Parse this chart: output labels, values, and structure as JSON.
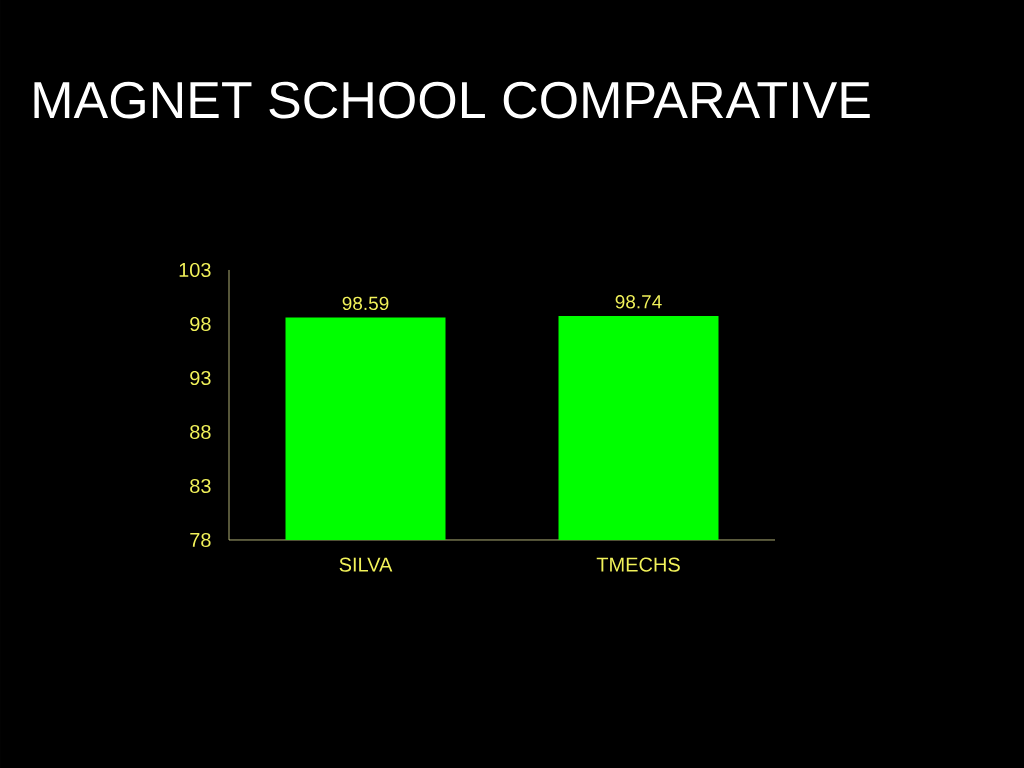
{
  "chart_data": {
    "type": "bar",
    "title": "MAGNET SCHOOL COMPARATIVE",
    "categories": [
      "SILVA",
      "TMECHS"
    ],
    "values": [
      98.59,
      98.74
    ],
    "color": "#00ff00",
    "ylim": [
      78,
      103
    ],
    "yticks": [
      78,
      83,
      88,
      93,
      98,
      103
    ],
    "data_labels": true
  }
}
